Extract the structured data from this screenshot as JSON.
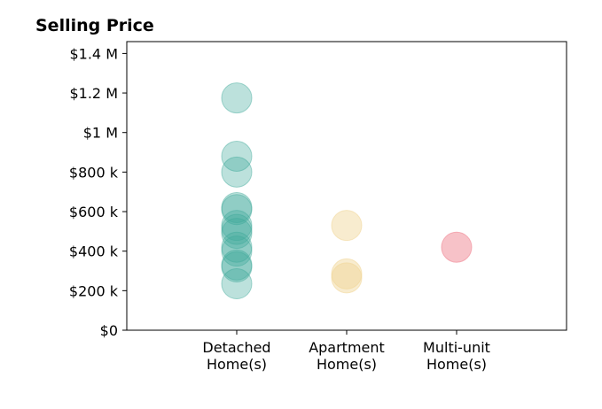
{
  "chart_data": {
    "type": "scatter",
    "title": "Selling Price",
    "xlabel": "",
    "ylabel": "",
    "categories": [
      [
        "Detached",
        "Home(s)"
      ],
      [
        "Apartment",
        "Home(s)"
      ],
      [
        "Multi-unit",
        "Home(s)"
      ]
    ],
    "xlim": [
      -1,
      3
    ],
    "ylim": [
      0,
      1460000
    ],
    "y_ticks": [
      {
        "value": 0,
        "label": "$0"
      },
      {
        "value": 200000,
        "label": "$200 k"
      },
      {
        "value": 400000,
        "label": "$400 k"
      },
      {
        "value": 600000,
        "label": "$600 k"
      },
      {
        "value": 800000,
        "label": "$800 k"
      },
      {
        "value": 1000000,
        "label": "$1 M"
      },
      {
        "value": 1200000,
        "label": "$1.2 M"
      },
      {
        "value": 1400000,
        "label": "$1.4 M"
      }
    ],
    "grid": false,
    "legend": "none",
    "series": [
      {
        "category": 0,
        "color": "#3fa99a",
        "opacity": 0.35,
        "values": [
          1175000,
          880000,
          800000,
          620000,
          610000,
          530000,
          510000,
          490000,
          420000,
          400000,
          330000,
          320000,
          235000
        ]
      },
      {
        "category": 1,
        "color": "#f0d595",
        "opacity": 0.45,
        "values": [
          530000,
          285000,
          265000
        ]
      },
      {
        "category": 2,
        "color": "#f08592",
        "opacity": 0.5,
        "values": [
          420000
        ]
      }
    ]
  }
}
